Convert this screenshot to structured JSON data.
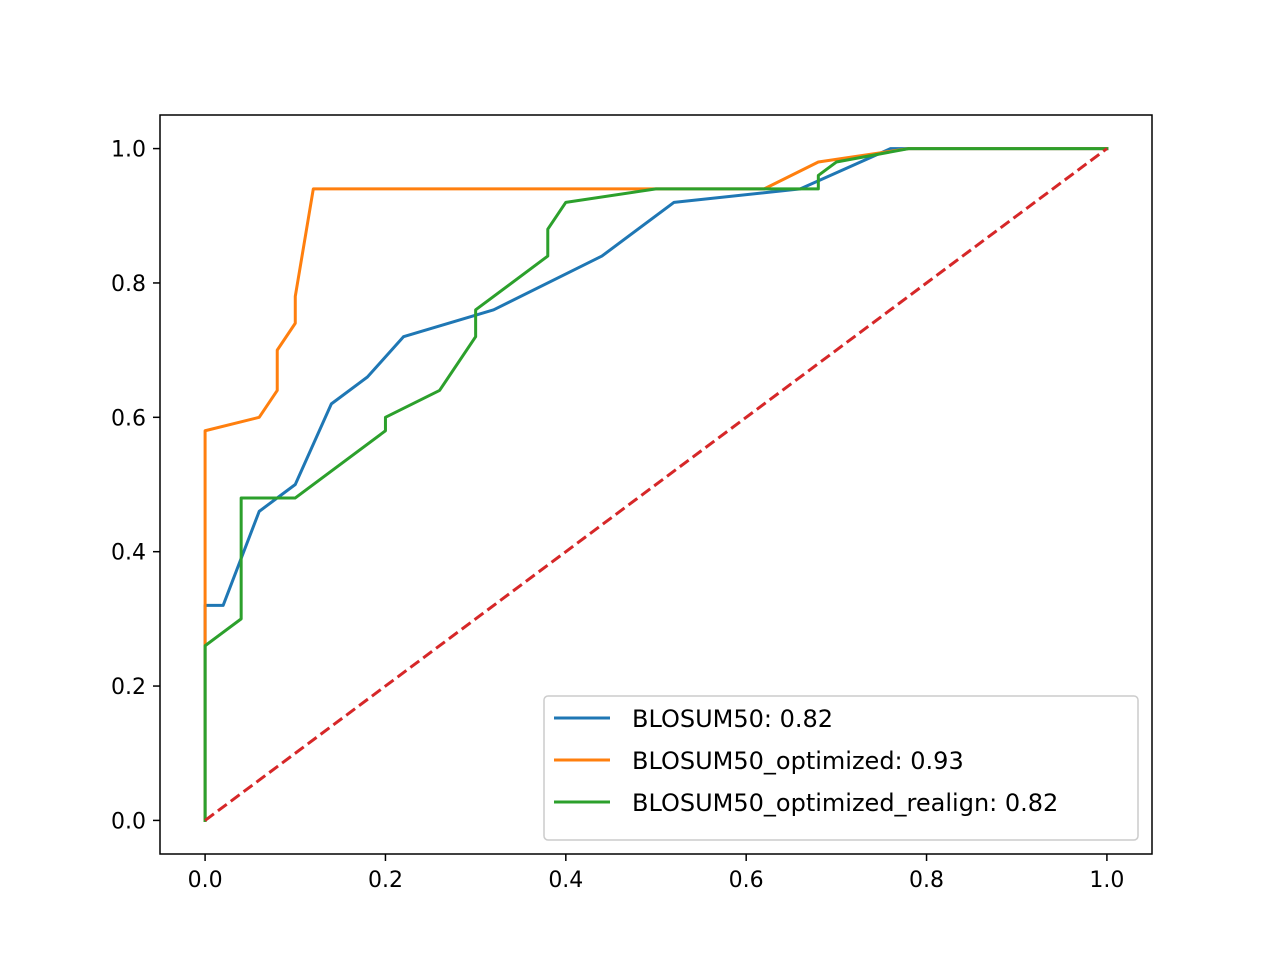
{
  "chart_data": {
    "type": "line",
    "title": "",
    "xlabel": "",
    "ylabel": "",
    "xlim": [
      -0.05,
      1.05
    ],
    "ylim": [
      -0.05,
      1.05
    ],
    "x_ticks": [
      0.0,
      0.2,
      0.4,
      0.6,
      0.8,
      1.0
    ],
    "y_ticks": [
      0.0,
      0.2,
      0.4,
      0.6,
      0.8,
      1.0
    ],
    "x_tick_labels": [
      "0.0",
      "0.2",
      "0.4",
      "0.6",
      "0.8",
      "1.0"
    ],
    "y_tick_labels": [
      "0.0",
      "0.2",
      "0.4",
      "0.6",
      "0.8",
      "1.0"
    ],
    "grid": false,
    "legend_position": "lower-right",
    "series": [
      {
        "name": "BLOSUM50: 0.82",
        "color": "#1f77b4",
        "style": "solid",
        "points": [
          [
            0,
            0
          ],
          [
            0,
            0.32
          ],
          [
            0.02,
            0.32
          ],
          [
            0.06,
            0.46
          ],
          [
            0.1,
            0.5
          ],
          [
            0.14,
            0.62
          ],
          [
            0.18,
            0.66
          ],
          [
            0.22,
            0.72
          ],
          [
            0.32,
            0.76
          ],
          [
            0.44,
            0.84
          ],
          [
            0.52,
            0.92
          ],
          [
            0.66,
            0.94
          ],
          [
            0.76,
            1.0
          ],
          [
            1.0,
            1.0
          ]
        ]
      },
      {
        "name": "BLOSUM50_optimized: 0.93",
        "color": "#ff7f0e",
        "style": "solid",
        "points": [
          [
            0,
            0
          ],
          [
            0,
            0.58
          ],
          [
            0.06,
            0.6
          ],
          [
            0.08,
            0.64
          ],
          [
            0.08,
            0.7
          ],
          [
            0.1,
            0.74
          ],
          [
            0.1,
            0.78
          ],
          [
            0.12,
            0.94
          ],
          [
            0.62,
            0.94
          ],
          [
            0.68,
            0.98
          ],
          [
            0.78,
            1.0
          ],
          [
            1.0,
            1.0
          ]
        ]
      },
      {
        "name": "BLOSUM50_optimized_realign: 0.82",
        "color": "#2ca02c",
        "style": "solid",
        "points": [
          [
            0,
            0
          ],
          [
            0,
            0.26
          ],
          [
            0.04,
            0.3
          ],
          [
            0.04,
            0.48
          ],
          [
            0.1,
            0.48
          ],
          [
            0.2,
            0.58
          ],
          [
            0.2,
            0.6
          ],
          [
            0.26,
            0.64
          ],
          [
            0.3,
            0.72
          ],
          [
            0.3,
            0.76
          ],
          [
            0.38,
            0.84
          ],
          [
            0.38,
            0.88
          ],
          [
            0.4,
            0.92
          ],
          [
            0.5,
            0.94
          ],
          [
            0.68,
            0.94
          ],
          [
            0.68,
            0.96
          ],
          [
            0.7,
            0.98
          ],
          [
            0.78,
            1.0
          ],
          [
            1.0,
            1.0
          ]
        ]
      },
      {
        "name": "",
        "color": "#d62728",
        "style": "dashed",
        "points": [
          [
            0,
            0
          ],
          [
            1,
            1
          ]
        ]
      }
    ]
  }
}
